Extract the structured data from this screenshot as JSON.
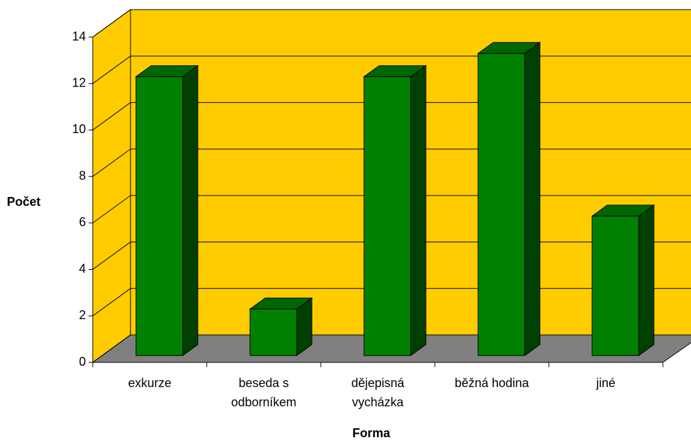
{
  "chart_data": {
    "type": "bar3d",
    "x_label": "Forma",
    "y_label": "Počet",
    "categories": [
      "exkurze",
      "beseda s odborníkem",
      "dějepisná vycházka",
      "běžná hodina",
      "jiné"
    ],
    "values": [
      12,
      2,
      12,
      13,
      6
    ],
    "color": "#008000",
    "wall_color": "#ffcc00",
    "floor_color": "#808080",
    "ylim": [
      0,
      14
    ],
    "yticks": [
      0,
      2,
      4,
      6,
      8,
      10,
      12,
      14
    ],
    "grid": true
  }
}
